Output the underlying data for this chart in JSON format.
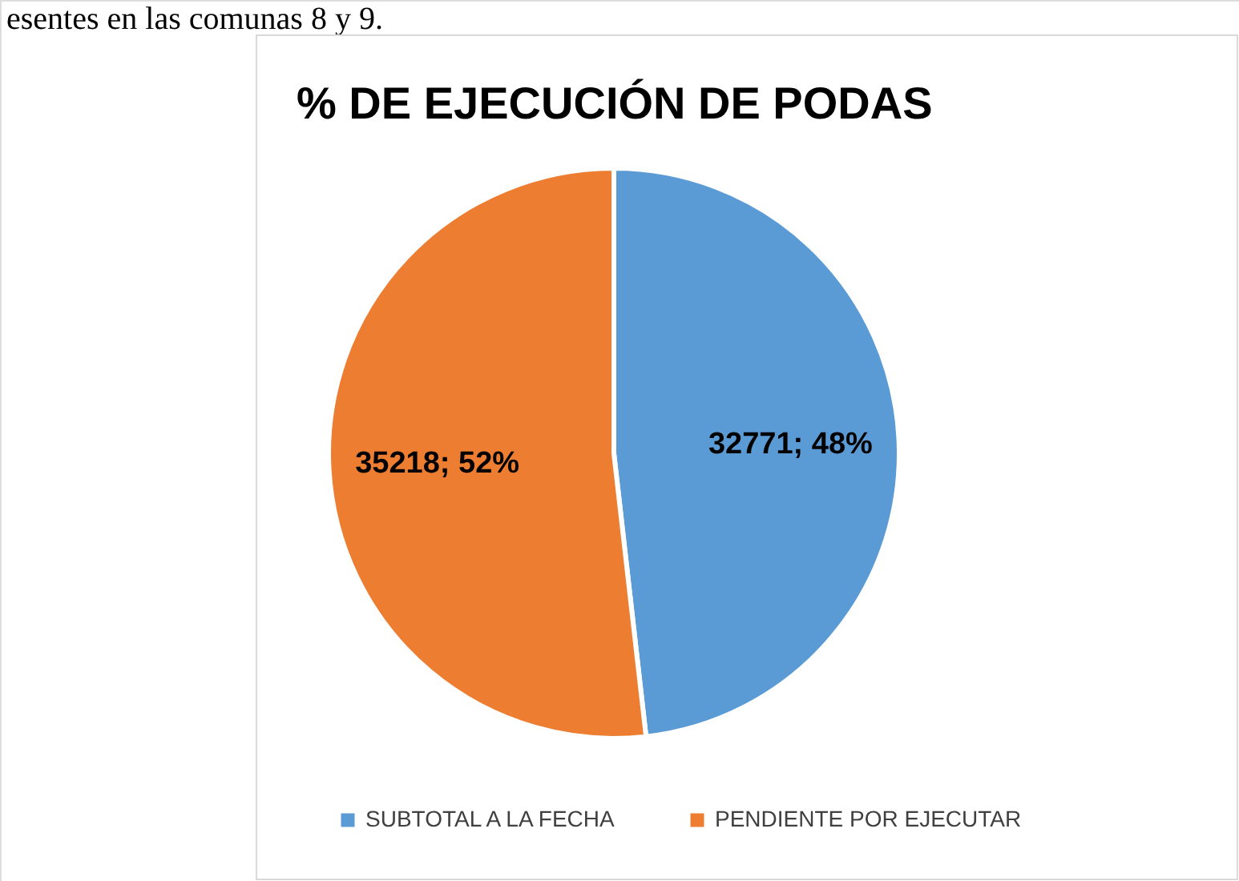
{
  "chart_data": {
    "type": "pie",
    "title": "% DE EJECUCIÓN DE PODAS",
    "categories": [
      "SUBTOTAL A LA FECHA",
      "PENDIENTE POR EJECUTAR"
    ],
    "values": [
      32771,
      35218
    ],
    "colors": [
      "#5b9bd5",
      "#ed7d31"
    ],
    "value_labels": [
      "32771; 48%",
      "35218; 52%"
    ],
    "legend": "bottom",
    "annotations": [
      "esentes en las comunas 8 y 9."
    ]
  }
}
